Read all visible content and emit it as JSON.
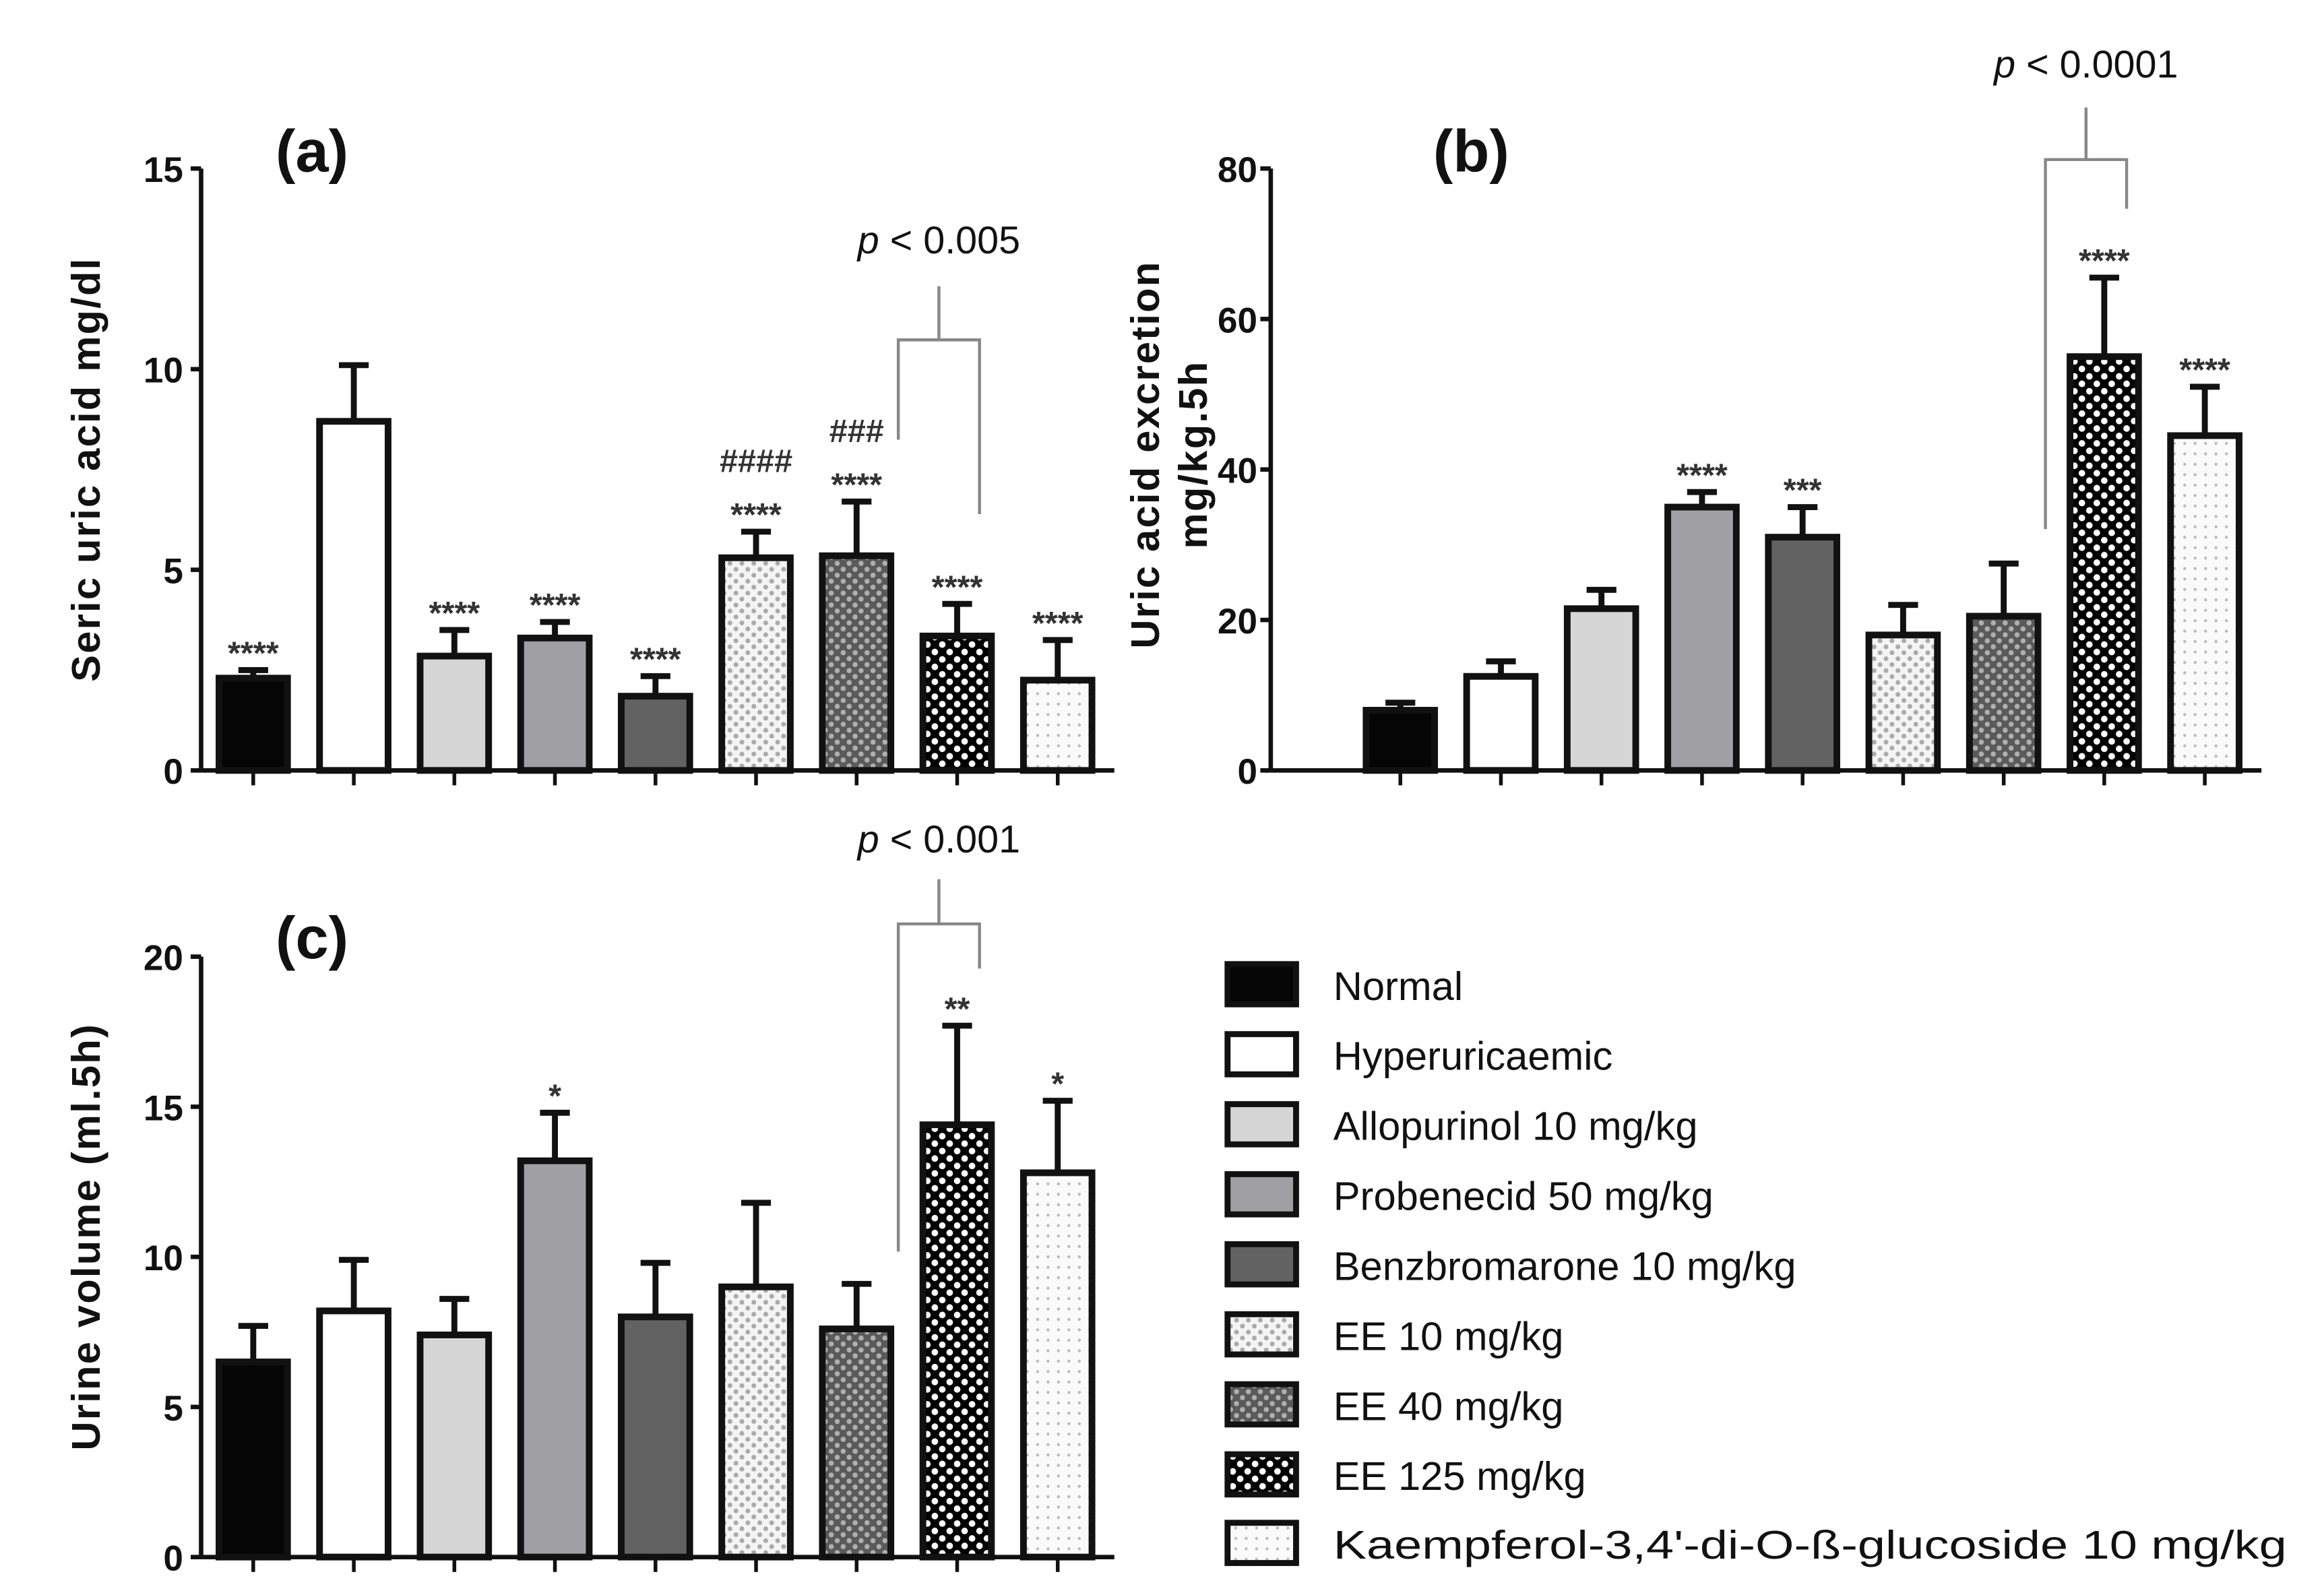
{
  "chart_data": [
    {
      "type": "bar",
      "panel_label": "(a)",
      "ylabel": "Seric uric acid mg/dl",
      "ylim": [
        0,
        15
      ],
      "yticks": [
        "0",
        "5",
        "10",
        "15"
      ],
      "categories": [
        "Normal",
        "Hyperuricaemic",
        "Allopurinol 10 mg/kg",
        "Probenecid 50 mg/kg",
        "Benzbromarone 10 mg/kg",
        "EE 10 mg/kg",
        "EE 40 mg/kg",
        "EE 125 mg/kg",
        "Kaempferol-3,4'-di-O-ß-glucoside 10 mg/kg"
      ],
      "values": [
        2.3,
        8.7,
        2.85,
        3.3,
        1.85,
        5.3,
        5.35,
        3.35,
        2.25
      ],
      "errors": [
        0.2,
        1.4,
        0.65,
        0.4,
        0.5,
        0.65,
        1.35,
        0.8,
        1.0
      ],
      "annotations": [
        "****",
        "",
        "****",
        "****",
        "****",
        "####\n****",
        "###\n****",
        "****",
        "****"
      ],
      "comparison": {
        "from": 6,
        "to": 7,
        "label": "p < 0.005"
      }
    },
    {
      "type": "bar",
      "panel_label": "(b)",
      "ylabel": "Uric acid excretion\nmg/kg.5h",
      "ylim": [
        0,
        80
      ],
      "yticks": [
        "0",
        "20",
        "40",
        "60",
        "80"
      ],
      "categories": [
        "Normal",
        "Hyperuricaemic",
        "Allopurinol 10 mg/kg",
        "Probenecid 50 mg/kg",
        "Benzbromarone 10 mg/kg",
        "EE 10 mg/kg",
        "EE 40 mg/kg",
        "EE 125 mg/kg",
        "Kaempferol-3,4'-di-O-ß-glucoside 10 mg/kg"
      ],
      "values": [
        8,
        12.5,
        21.5,
        35,
        31,
        18,
        20.5,
        55,
        44.5
      ],
      "errors": [
        1,
        2,
        2.5,
        2,
        4,
        4,
        7,
        10.5,
        6.5
      ],
      "annotations": [
        "",
        "",
        "",
        "****",
        "***",
        "",
        "",
        "****",
        "****"
      ],
      "comparison": {
        "from": 6,
        "to": 7,
        "label": "p < 0.0001"
      }
    },
    {
      "type": "bar",
      "panel_label": "(c)",
      "ylabel": "Urine volume (ml.5h)",
      "ylim": [
        0,
        20
      ],
      "yticks": [
        "0",
        "5",
        "10",
        "15",
        "20"
      ],
      "categories": [
        "Normal",
        "Hyperuricaemic",
        "Allopurinol 10 mg/kg",
        "Probenecid 50 mg/kg",
        "Benzbromarone 10 mg/kg",
        "EE 10 mg/kg",
        "EE 40 mg/kg",
        "EE 125 mg/kg",
        "Kaempferol-3,4'-di-O-ß-glucoside 10 mg/kg"
      ],
      "values": [
        6.5,
        8.2,
        7.4,
        13.2,
        8.0,
        9.0,
        7.6,
        14.4,
        12.8
      ],
      "errors": [
        1.2,
        1.7,
        1.2,
        1.6,
        1.8,
        2.8,
        1.5,
        3.3,
        2.4
      ],
      "annotations": [
        "",
        "",
        "",
        "*",
        "",
        "",
        "",
        "**",
        "*"
      ],
      "comparison": {
        "from": 6,
        "to": 7,
        "label": "p < 0.001"
      }
    }
  ],
  "legend": {
    "placement": "bottom-right",
    "items": [
      {
        "label": "Normal",
        "fill": "solid-black"
      },
      {
        "label": "Hyperuricaemic",
        "fill": "white"
      },
      {
        "label": "Allopurinol 10 mg/kg",
        "fill": "light-gray"
      },
      {
        "label": "Probenecid 50 mg/kg",
        "fill": "mid-gray"
      },
      {
        "label": "Benzbromarone 10 mg/kg",
        "fill": "dark-gray"
      },
      {
        "label": "EE 10 mg/kg",
        "fill": "light-checker"
      },
      {
        "label": "EE 40 mg/kg",
        "fill": "dark-checker"
      },
      {
        "label": "EE 125 mg/kg",
        "fill": "black-white-dots"
      },
      {
        "label": "Kaempferol-3,4'-di-O-ß-glucoside 10 mg/kg",
        "fill": "fine-dots"
      }
    ]
  },
  "colors": {
    "axis": "#111111",
    "bracket": "#888888",
    "black": "#050505",
    "white": "#ffffff",
    "light_gray": "#d6d6d6",
    "mid_gray": "#a0a0a4",
    "dark_gray": "#626262"
  }
}
